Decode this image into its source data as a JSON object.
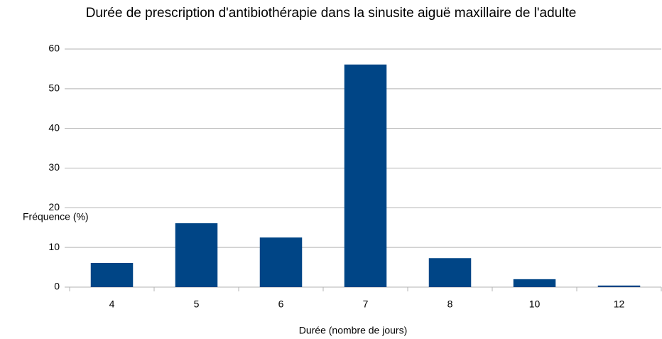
{
  "chart_data": {
    "type": "bar",
    "title": "Durée de prescription d'antibiothérapie dans la sinusite aiguë maxillaire de l'adulte",
    "x_label": "Durée (nombre de jours)",
    "y_label": "Fréquence (%)",
    "categories": [
      "4",
      "5",
      "6",
      "7",
      "8",
      "10",
      "12"
    ],
    "values": [
      6.1,
      16.1,
      12.5,
      56.1,
      7.3,
      2.0,
      0.4
    ],
    "color": "#004586",
    "ylim": [
      0,
      60
    ],
    "yticks": [
      0,
      10,
      20,
      30,
      40,
      50,
      60
    ],
    "grid": true
  }
}
